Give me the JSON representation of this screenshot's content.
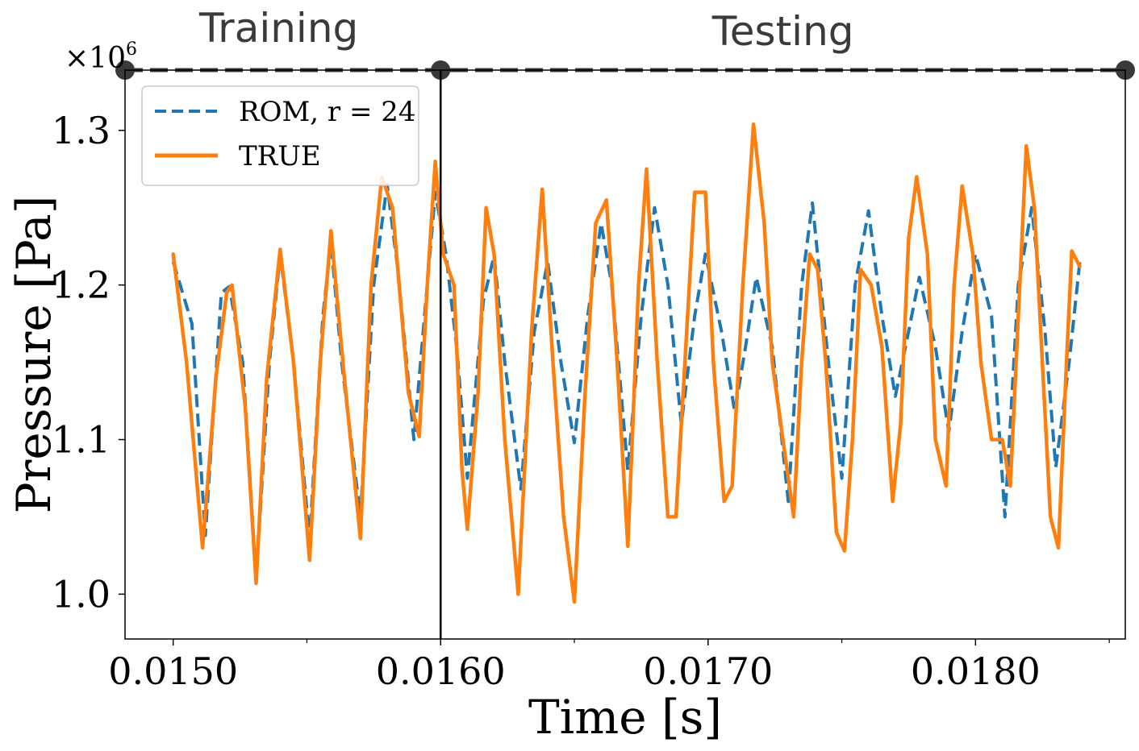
{
  "colors": {
    "rom": "#1f77b4",
    "true_series": "#ff7f0e",
    "axis": "#000000",
    "header": "#3a3a3a"
  },
  "chart_data": {
    "type": "line",
    "title": "",
    "xlabel": "Time [s]",
    "ylabel": "Pressure [Pa]",
    "y_offset_label": "×10",
    "y_offset_exponent": "6",
    "xlim": [
      0.01482,
      0.01856
    ],
    "ylim": [
      0.971,
      1.339
    ],
    "x_ticks": [
      0.015,
      0.016,
      0.017,
      0.018
    ],
    "x_tick_labels": [
      "0.0150",
      "0.0160",
      "0.0170",
      "0.0180"
    ],
    "x_minor_ticks": [
      0.0155,
      0.0165,
      0.0175,
      0.0185
    ],
    "y_ticks": [
      1.0,
      1.1,
      1.2,
      1.3
    ],
    "y_tick_labels": [
      "1.0",
      "1.1",
      "1.2",
      "1.3"
    ],
    "grid": false,
    "legend_position": "top-left",
    "split_time": 0.016,
    "phases": [
      {
        "name": "Training",
        "start": 0.01482,
        "end": 0.016
      },
      {
        "name": "Testing",
        "start": 0.016,
        "end": 0.01856
      }
    ],
    "series": [
      {
        "name": "ROM, r = 24",
        "style": "dashed",
        "points": [
          [
            0.015,
            1.215
          ],
          [
            0.01507,
            1.175
          ],
          [
            0.01512,
            1.038
          ],
          [
            0.01518,
            1.195
          ],
          [
            0.01521,
            1.199
          ],
          [
            0.01526,
            1.15
          ],
          [
            0.01531,
            1.01
          ],
          [
            0.01536,
            1.15
          ],
          [
            0.0154,
            1.22
          ],
          [
            0.01545,
            1.15
          ],
          [
            0.01551,
            1.035
          ],
          [
            0.01556,
            1.18
          ],
          [
            0.01559,
            1.228
          ],
          [
            0.01563,
            1.15
          ],
          [
            0.0157,
            1.05
          ],
          [
            0.01575,
            1.2
          ],
          [
            0.0158,
            1.265
          ],
          [
            0.01584,
            1.21
          ],
          [
            0.0159,
            1.1
          ],
          [
            0.01594,
            1.18
          ],
          [
            0.01598,
            1.26
          ],
          [
            0.01602,
            1.22
          ],
          [
            0.01606,
            1.16
          ],
          [
            0.0161,
            1.075
          ],
          [
            0.01616,
            1.19
          ],
          [
            0.0162,
            1.219
          ],
          [
            0.01624,
            1.15
          ],
          [
            0.0163,
            1.068
          ],
          [
            0.01635,
            1.17
          ],
          [
            0.0164,
            1.215
          ],
          [
            0.01645,
            1.15
          ],
          [
            0.0165,
            1.098
          ],
          [
            0.01655,
            1.18
          ],
          [
            0.0166,
            1.24
          ],
          [
            0.01664,
            1.2
          ],
          [
            0.0167,
            1.08
          ],
          [
            0.01675,
            1.18
          ],
          [
            0.0168,
            1.25
          ],
          [
            0.01685,
            1.2
          ],
          [
            0.0169,
            1.11
          ],
          [
            0.01695,
            1.18
          ],
          [
            0.01699,
            1.22
          ],
          [
            0.01705,
            1.17
          ],
          [
            0.0171,
            1.118
          ],
          [
            0.01714,
            1.16
          ],
          [
            0.01718,
            1.205
          ],
          [
            0.01724,
            1.16
          ],
          [
            0.0173,
            1.06
          ],
          [
            0.01735,
            1.2
          ],
          [
            0.01739,
            1.253
          ],
          [
            0.01745,
            1.15
          ],
          [
            0.0175,
            1.075
          ],
          [
            0.01755,
            1.2
          ],
          [
            0.0176,
            1.248
          ],
          [
            0.01765,
            1.18
          ],
          [
            0.0177,
            1.128
          ],
          [
            0.01775,
            1.17
          ],
          [
            0.01779,
            1.205
          ],
          [
            0.01785,
            1.16
          ],
          [
            0.0179,
            1.105
          ],
          [
            0.01795,
            1.17
          ],
          [
            0.018,
            1.22
          ],
          [
            0.01806,
            1.18
          ],
          [
            0.01811,
            1.05
          ],
          [
            0.01816,
            1.2
          ],
          [
            0.01821,
            1.25
          ],
          [
            0.01826,
            1.17
          ],
          [
            0.0183,
            1.082
          ],
          [
            0.01835,
            1.15
          ],
          [
            0.01839,
            1.215
          ]
        ]
      },
      {
        "name": "TRUE",
        "style": "solid",
        "points": [
          [
            0.015,
            1.22
          ],
          [
            0.01505,
            1.15
          ],
          [
            0.01511,
            1.03
          ],
          [
            0.01516,
            1.14
          ],
          [
            0.0152,
            1.195
          ],
          [
            0.01522,
            1.2
          ],
          [
            0.01527,
            1.12
          ],
          [
            0.01531,
            1.007
          ],
          [
            0.01535,
            1.14
          ],
          [
            0.0154,
            1.223
          ],
          [
            0.01545,
            1.15
          ],
          [
            0.01551,
            1.022
          ],
          [
            0.01555,
            1.15
          ],
          [
            0.01559,
            1.235
          ],
          [
            0.01564,
            1.14
          ],
          [
            0.0157,
            1.036
          ],
          [
            0.01574,
            1.2
          ],
          [
            0.01578,
            1.27
          ],
          [
            0.01582,
            1.25
          ],
          [
            0.01588,
            1.13
          ],
          [
            0.01592,
            1.102
          ],
          [
            0.01595,
            1.2
          ],
          [
            0.01598,
            1.28
          ],
          [
            0.01601,
            1.22
          ],
          [
            0.01605,
            1.2
          ],
          [
            0.01608,
            1.08
          ],
          [
            0.0161,
            1.042
          ],
          [
            0.01614,
            1.13
          ],
          [
            0.01617,
            1.25
          ],
          [
            0.0162,
            1.22
          ],
          [
            0.01624,
            1.1
          ],
          [
            0.01629,
            1.0
          ],
          [
            0.01634,
            1.17
          ],
          [
            0.01638,
            1.262
          ],
          [
            0.01642,
            1.15
          ],
          [
            0.01646,
            1.05
          ],
          [
            0.0165,
            0.995
          ],
          [
            0.01654,
            1.13
          ],
          [
            0.01658,
            1.24
          ],
          [
            0.01662,
            1.255
          ],
          [
            0.01666,
            1.15
          ],
          [
            0.0167,
            1.031
          ],
          [
            0.01674,
            1.2
          ],
          [
            0.01677,
            1.275
          ],
          [
            0.01681,
            1.15
          ],
          [
            0.01685,
            1.05
          ],
          [
            0.01688,
            1.05
          ],
          [
            0.01692,
            1.17
          ],
          [
            0.01695,
            1.26
          ],
          [
            0.01699,
            1.26
          ],
          [
            0.01702,
            1.15
          ],
          [
            0.01706,
            1.06
          ],
          [
            0.01709,
            1.07
          ],
          [
            0.01713,
            1.2
          ],
          [
            0.01717,
            1.304
          ],
          [
            0.01721,
            1.24
          ],
          [
            0.01724,
            1.15
          ],
          [
            0.01728,
            1.1
          ],
          [
            0.01732,
            1.05
          ],
          [
            0.01735,
            1.15
          ],
          [
            0.01738,
            1.22
          ],
          [
            0.01741,
            1.21
          ],
          [
            0.01744,
            1.15
          ],
          [
            0.01748,
            1.04
          ],
          [
            0.01751,
            1.028
          ],
          [
            0.01754,
            1.1
          ],
          [
            0.01757,
            1.21
          ],
          [
            0.01761,
            1.2
          ],
          [
            0.01765,
            1.16
          ],
          [
            0.01769,
            1.06
          ],
          [
            0.01772,
            1.11
          ],
          [
            0.01775,
            1.23
          ],
          [
            0.01778,
            1.27
          ],
          [
            0.01782,
            1.22
          ],
          [
            0.01785,
            1.1
          ],
          [
            0.01789,
            1.07
          ],
          [
            0.01792,
            1.2
          ],
          [
            0.01795,
            1.264
          ],
          [
            0.01799,
            1.22
          ],
          [
            0.01802,
            1.15
          ],
          [
            0.01806,
            1.1
          ],
          [
            0.0181,
            1.1
          ],
          [
            0.01813,
            1.07
          ],
          [
            0.01816,
            1.18
          ],
          [
            0.01819,
            1.29
          ],
          [
            0.01822,
            1.25
          ],
          [
            0.01825,
            1.15
          ],
          [
            0.01828,
            1.05
          ],
          [
            0.01831,
            1.03
          ],
          [
            0.01834,
            1.15
          ],
          [
            0.01836,
            1.222
          ],
          [
            0.01839,
            1.212
          ]
        ]
      }
    ]
  }
}
